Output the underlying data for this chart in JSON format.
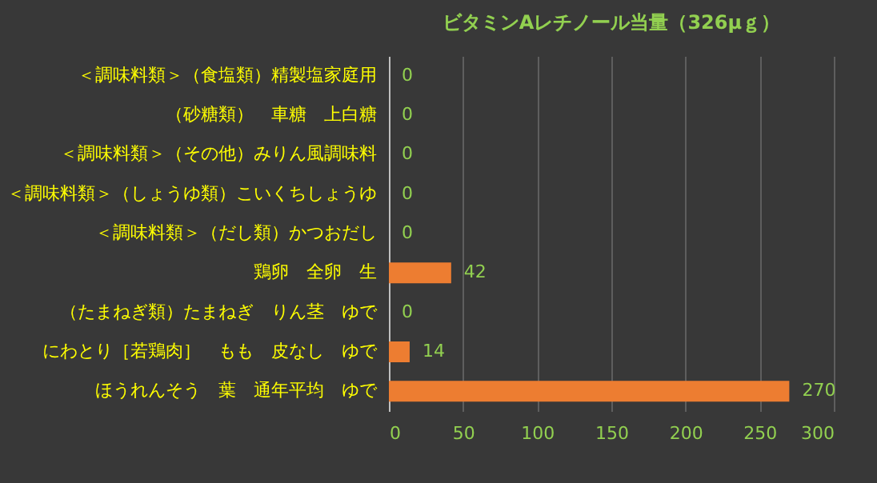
{
  "chart_data": {
    "type": "bar",
    "orientation": "horizontal",
    "title": "ビタミンAレチノール当量（326μｇ）",
    "categories": [
      "＜調味料類＞（食塩類）精製塩家庭用",
      "（砂糖類）　車糖　上白糖",
      "＜調味料類＞（その他）みりん風調味料",
      "＜調味料類＞（しょうゆ類）こいくちしょうゆ",
      "＜調味料類＞（だし類）かつおだし",
      "鶏卵　全卵　生",
      "（たまねぎ類）たまねぎ　りん茎　ゆで",
      "にわとり［若鶏肉］　もも　皮なし　ゆで",
      "ほうれんそう　葉　通年平均　ゆで"
    ],
    "values": [
      0,
      0,
      0,
      0,
      0,
      42,
      0,
      14,
      270
    ],
    "color": "#ed7d31",
    "xlim": [
      0,
      300
    ],
    "xticks": [
      0,
      50,
      100,
      150,
      200,
      250,
      300
    ],
    "grid": "x",
    "data_labels": true
  }
}
